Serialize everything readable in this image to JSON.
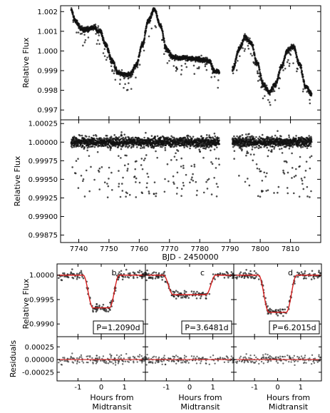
{
  "chart_data": [
    {
      "id": "raw",
      "type": "scatter",
      "ylabel": "Relative Flux",
      "xlim": [
        7734,
        7820
      ],
      "ylim": [
        0.9965,
        1.0023
      ],
      "yticks": [
        "1.002",
        "1.001",
        "1.000",
        "0.999",
        "0.998",
        "0.997"
      ],
      "ytick_values": [
        1.002,
        1.001,
        1.0,
        0.999,
        0.998,
        0.997
      ],
      "gap": [
        7786.5,
        7790.8
      ],
      "trend_x": [
        7737.5,
        7739,
        7741,
        7743,
        7745,
        7747,
        7749,
        7751,
        7753,
        7755,
        7757,
        7759,
        7761,
        7763,
        7765,
        7767,
        7769,
        7771,
        7773,
        7775,
        7777,
        7779,
        7781,
        7783,
        7785,
        7786,
        7791,
        7793,
        7795,
        7797,
        7799,
        7801,
        7803,
        7805,
        7807,
        7809,
        7811,
        7813,
        7815,
        7817
      ],
      "trend_y": [
        1.0021,
        1.0015,
        1.0011,
        1.0011,
        1.0012,
        1.001,
        1.0003,
        0.9995,
        0.9989,
        0.9988,
        0.9988,
        0.9993,
        1.0003,
        1.0015,
        1.0021,
        1.0013,
        1.0001,
        0.9997,
        0.99965,
        0.99965,
        0.9996,
        0.9996,
        0.99955,
        0.9995,
        0.99895,
        0.99895,
        0.9991,
        1.0001,
        1.0007,
        1.0004,
        0.9994,
        0.9983,
        0.9979,
        0.9983,
        0.9992,
        1.0,
        1.0002,
        0.9993,
        0.9982,
        0.9978
      ]
    },
    {
      "id": "detrended",
      "type": "scatter",
      "ylabel": "Relative Flux",
      "xlabel": "BJD - 2450000",
      "xlim": [
        7734,
        7820
      ],
      "ylim": [
        0.99865,
        1.0003
      ],
      "xticks": [
        "7740",
        "7750",
        "7760",
        "7770",
        "7780",
        "7790",
        "7800",
        "7810"
      ],
      "xtick_values": [
        7740,
        7750,
        7760,
        7770,
        7780,
        7790,
        7800,
        7810
      ],
      "yticks": [
        "1.00025",
        "1.00000",
        "0.99975",
        "0.99950",
        "0.99925",
        "0.99900",
        "0.99875"
      ],
      "ytick_values": [
        1.00025,
        1.0,
        0.99975,
        0.9995,
        0.99925,
        0.999,
        0.99875
      ],
      "baseline": 1.0,
      "gap": [
        7786.5,
        7790.8
      ]
    },
    {
      "id": "folded",
      "type": "scatter",
      "ylabel": "Relative Flux",
      "residual_ylabel": "Residuals",
      "xlabel": "Hours from Midtransit",
      "xlim": [
        -1.9,
        1.9
      ],
      "ylim": [
        0.99874,
        1.00023
      ],
      "yticks": [
        "1.0000",
        "0.9995",
        "0.9990"
      ],
      "ytick_values": [
        1.0,
        0.9995,
        0.999
      ],
      "residual_ylim": [
        -0.00042,
        0.00045
      ],
      "residual_yticks": [
        "0.00025",
        "0.00000",
        "-0.00025"
      ],
      "residual_ytick_values": [
        0.00025,
        0.0,
        -0.00025
      ],
      "xticks": [
        "-1",
        "0",
        "1"
      ],
      "xtick_values": [
        -1,
        0,
        1
      ],
      "model_color": "#d62020",
      "planets": [
        {
          "label": "b",
          "period": "P=1.2090d",
          "depth": 0.00067,
          "t14": 1.55,
          "t12": 0.42
        },
        {
          "label": "c",
          "period": "P=3.6481d",
          "depth": 0.0004,
          "t14": 2.25,
          "t12": 0.42
        },
        {
          "label": "d",
          "period": "P=6.2015d",
          "depth": 0.00076,
          "t14": 1.65,
          "t12": 0.45
        }
      ]
    }
  ]
}
